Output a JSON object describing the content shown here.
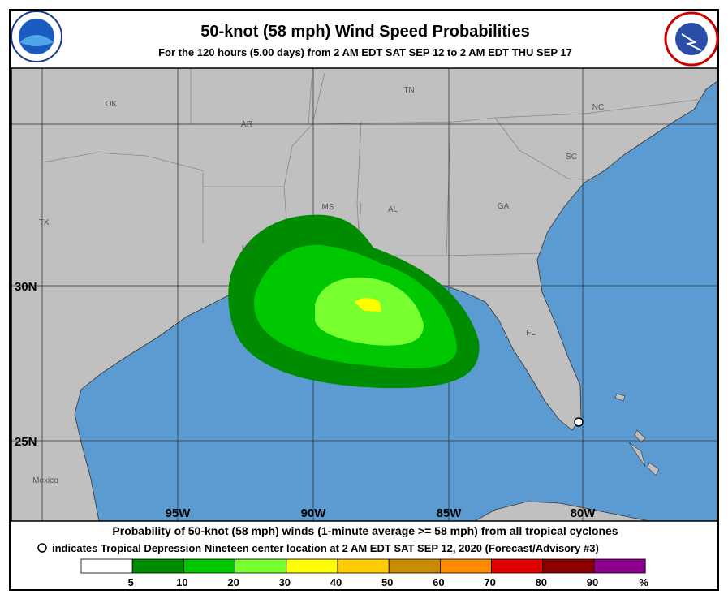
{
  "header": {
    "title": "50-knot (58 mph) Wind Speed Probabilities",
    "subtitle": "For the 120 hours (5.00 days) from 2 AM EDT SAT SEP 12 to 2 AM EDT THU SEP 17"
  },
  "map": {
    "regions": [
      "OK",
      "AR",
      "TN",
      "NC",
      "SC",
      "MS",
      "AL",
      "GA",
      "TX",
      "LA",
      "FL",
      "Mexico"
    ],
    "latitudes": [
      "30N",
      "25N"
    ],
    "longitudes": [
      "95W",
      "90W",
      "85W",
      "80W"
    ]
  },
  "footer": {
    "line1": "Probability of 50-knot (58 mph) winds (1-minute average >= 58 mph) from all tropical cyclones",
    "line2": "indicates Tropical Depression Nineteen center location at 2 AM EDT SAT SEP 12, 2020 (Forecast/Advisory #3)"
  },
  "legend": {
    "colors": [
      "#ffffff",
      "#008c00",
      "#00c800",
      "#78ff30",
      "#ffff00",
      "#ffcc00",
      "#c88c00",
      "#ff8c00",
      "#e00000",
      "#8c0000",
      "#8c008c"
    ],
    "labels": [
      "5",
      "10",
      "20",
      "30",
      "40",
      "50",
      "60",
      "70",
      "80",
      "90",
      "%"
    ]
  }
}
